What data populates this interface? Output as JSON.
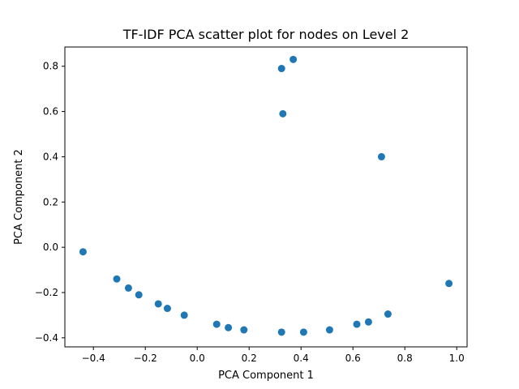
{
  "chart_data": {
    "type": "scatter",
    "title": "TF-IDF PCA scatter plot for nodes on Level 2",
    "xlabel": "PCA Component 1",
    "ylabel": "PCA Component 2",
    "xlim": [
      -0.51,
      1.04
    ],
    "ylim": [
      -0.44,
      0.885
    ],
    "xticks": [
      -0.4,
      -0.2,
      0.0,
      0.2,
      0.4,
      0.6,
      0.8,
      1.0
    ],
    "xtick_labels": [
      "−0.4",
      "−0.2",
      "0.0",
      "0.2",
      "0.4",
      "0.6",
      "0.8",
      "1.0"
    ],
    "yticks": [
      -0.4,
      -0.2,
      0.0,
      0.2,
      0.4,
      0.6,
      0.8
    ],
    "ytick_labels": [
      "−0.4",
      "−0.2",
      "0.0",
      "0.2",
      "0.4",
      "0.6",
      "0.8"
    ],
    "grid": false,
    "marker_color": "#1f77b4",
    "points": [
      {
        "x": -0.44,
        "y": -0.02
      },
      {
        "x": -0.31,
        "y": -0.14
      },
      {
        "x": -0.265,
        "y": -0.18
      },
      {
        "x": -0.225,
        "y": -0.21
      },
      {
        "x": -0.15,
        "y": -0.25
      },
      {
        "x": -0.115,
        "y": -0.27
      },
      {
        "x": -0.05,
        "y": -0.3
      },
      {
        "x": 0.075,
        "y": -0.34
      },
      {
        "x": 0.12,
        "y": -0.355
      },
      {
        "x": 0.18,
        "y": -0.365
      },
      {
        "x": 0.325,
        "y": -0.375
      },
      {
        "x": 0.41,
        "y": -0.375
      },
      {
        "x": 0.51,
        "y": -0.365
      },
      {
        "x": 0.615,
        "y": -0.34
      },
      {
        "x": 0.66,
        "y": -0.33
      },
      {
        "x": 0.735,
        "y": -0.295
      },
      {
        "x": 0.97,
        "y": -0.16
      },
      {
        "x": 0.71,
        "y": 0.4
      },
      {
        "x": 0.33,
        "y": 0.59
      },
      {
        "x": 0.325,
        "y": 0.79
      },
      {
        "x": 0.37,
        "y": 0.83
      }
    ]
  }
}
